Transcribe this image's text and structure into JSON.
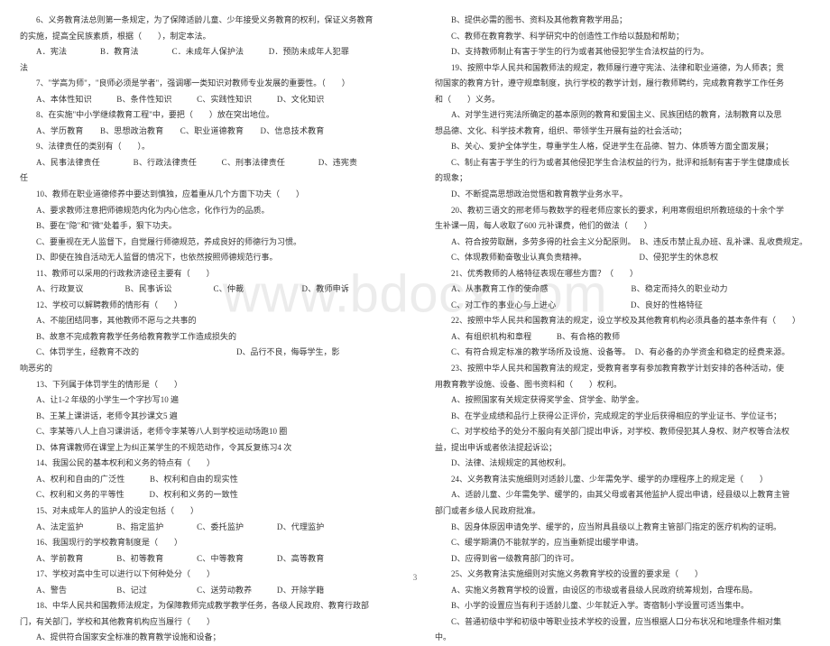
{
  "watermark": "www.bdocx.com",
  "page_number": "3",
  "left_lines": [
    {
      "cls": "indent",
      "t": "6、义务教育法总则第一条规定，为了保障适龄儿童、少年接受义务教育的权利，保证义务教育"
    },
    {
      "cls": "",
      "t": "的实施，提高全民族素质，根据（　　），制定本法。"
    },
    {
      "cls": "opts",
      "t": "A．宪法　　　　B．教育法　　　　C．未成年人保护法　　　D．预防未成年人犯罪"
    },
    {
      "cls": "",
      "t": "法"
    },
    {
      "cls": "indent",
      "t": "7、\"学高为师\"，\"良师必须是学者\"，强调哪一类知识对教师专业发展的重要性。（　　）"
    },
    {
      "cls": "opts",
      "t": "A、本体性知识　　　B、条件性知识　　　C、实践性知识　　　D、文化知识"
    },
    {
      "cls": "indent",
      "t": "8、在实施\"中小学继续教育工程\"中，要把（　　）放在突出地位。"
    },
    {
      "cls": "opts",
      "t": "A、学历教育　　B、思想政治教育　　C、职业道德教育　　D、信息技术教育"
    },
    {
      "cls": "indent",
      "t": "9、法律责任的类别有（　　）。"
    },
    {
      "cls": "opts",
      "t": "A、民事法律责任　　　　B、行政法律责任　　　C、刑事法律责任　　　　D、违宪责"
    },
    {
      "cls": "",
      "t": "任"
    },
    {
      "cls": "indent",
      "t": "10、教师在职业道德修养中要达到慎独，应着重从几个方面下功夫（　　）"
    },
    {
      "cls": "indent",
      "t": "A、要求教师注意把师德规范内化为内心信念，化作行为的品质。"
    },
    {
      "cls": "indent",
      "t": "B、要在\"隐\"和\"微\"处着手，狠下功夫。"
    },
    {
      "cls": "indent",
      "t": "C、要重视在无人监督下，自觉履行师德规范，养成良好的师德行为习惯。"
    },
    {
      "cls": "indent",
      "t": "D、即使在独自活动无人监督的情况下，也依然按照师德规范行事。"
    },
    {
      "cls": "indent",
      "t": "11、教师可以采用的行政救济途径主要有（　　）"
    },
    {
      "cls": "opts",
      "t": "A、行政复议　　　　　B、民事诉讼　　　　　C、仲裁　　　　　　　D、教师申诉"
    },
    {
      "cls": "indent",
      "t": "12、学校可以解聘教师的情形有（　　）"
    },
    {
      "cls": "indent",
      "t": "A、不能团结同事，其他教师不愿与之共事的"
    },
    {
      "cls": "indent",
      "t": "B、故意不完成教育教学任务给教育教学工作造成损失的"
    },
    {
      "cls": "indent",
      "t": "C、体罚学生，经教育不改的　　　　　　　　　　　　D、品行不良，侮辱学生，影"
    },
    {
      "cls": "",
      "t": "响恶劣的"
    },
    {
      "cls": "indent",
      "t": "13、下列属于体罚学生的情形是（　　）"
    },
    {
      "cls": "indent",
      "t": "A、让1-2 年级的小学生一个字抄写10 遍"
    },
    {
      "cls": "indent",
      "t": "B、王某上课讲话，老师令其抄课文5 遍"
    },
    {
      "cls": "indent",
      "t": "C、李某等八人上自习课讲话，老师令李某等八人到学校运动场跑10 圈"
    },
    {
      "cls": "indent",
      "t": "D、体育课教师在课堂上为纠正某学生的不规范动作，令其反复练习4 次"
    },
    {
      "cls": "indent",
      "t": "14、我国公民的基本权利和义务的特点有（　　）"
    },
    {
      "cls": "opts",
      "t": "A、权利和自由的广泛性　　　B、权利和自由的现实性"
    },
    {
      "cls": "opts",
      "t": "C、权利和义务的平等性　　　D、权利和义务的一致性"
    },
    {
      "cls": "indent",
      "t": "15、对未成年人的监护人的设定包括（　　）"
    },
    {
      "cls": "opts",
      "t": "A、法定监护　　　　B、指定监护　　　　C、委托监护　　　　D、代理监护"
    },
    {
      "cls": "indent",
      "t": "16、我国现行的学校教育制度是（　　）"
    },
    {
      "cls": "opts",
      "t": "A、学前教育　　　　B、初等教育　　　　C、中等教育　　　　D、高等教育"
    },
    {
      "cls": "indent",
      "t": "17、学校对高中生可以进行以下何种处分（　　）"
    },
    {
      "cls": "opts",
      "t": "A、警告　　　　　　B、记过　　　　　　C、送劳动教养　　　D、开除学籍"
    },
    {
      "cls": "indent",
      "t": "18、中华人民共和国教师法规定，为保障教师完成教学教学任务，各级人民政府、教育行政部"
    },
    {
      "cls": "",
      "t": "门，有关部门，学校和其他教育机构应当履行（　　）"
    },
    {
      "cls": "indent",
      "t": "A、提供符合国家安全标准的教育教学设施和设备；"
    }
  ],
  "right_lines": [
    {
      "cls": "indent",
      "t": "B、提供必需的图书、资料及其他教育教学用品；"
    },
    {
      "cls": "indent",
      "t": "C、教师在教育教学、科学研究中的创造性工作给以鼓励和帮助；"
    },
    {
      "cls": "indent",
      "t": "D、支持教师制止有害于学生的行为或者其他侵犯学生合法权益的行为。"
    },
    {
      "cls": "indent",
      "t": "19、按照中华人民共和国教师法的规定，教师履行遵守宪法、法律和职业道德，为人师表；贯"
    },
    {
      "cls": "",
      "t": "彻国家的教育方针，遵守规章制度，执行学校的教学计划，履行教师聘约，完成教育教学工作任务"
    },
    {
      "cls": "",
      "t": "和（　　）义务。"
    },
    {
      "cls": "indent",
      "t": "A、对学生进行宪法所确定的基本原则的教育和爱国主义、民族团结的教育，法制教育以及思"
    },
    {
      "cls": "",
      "t": "想品德、文化、科学技术教育，组织、带领学生开展有益的社会活动；"
    },
    {
      "cls": "indent",
      "t": "B、关心、爱护全体学生，尊重学生人格，促进学生在品德、智力、体质等方面全面发展；"
    },
    {
      "cls": "indent",
      "t": "C、制止有害于学生的行为或者其他侵犯学生合法权益的行为，批评和抵制有害于学生健康成长"
    },
    {
      "cls": "",
      "t": "的现象；"
    },
    {
      "cls": "indent",
      "t": "D、不断提高思想政治觉悟和教育教学业务水平。"
    },
    {
      "cls": "indent",
      "t": "20、教初三语文的邢老师与教数学的程老师应家长的要求，利用寒假组织所教班级的十余个学"
    },
    {
      "cls": "",
      "t": "生补课一周，每人收取了600 元补课费，他们的做法（　　）"
    },
    {
      "cls": "indent",
      "t": "A、符合按劳取酬，多劳多得的社会主义分配原则。　B、违反市禁止乱办班、乱补课、乱收费规定。"
    },
    {
      "cls": "indent",
      "t": "C、体现教师勤奋敬业认真负责精神。　　　　　　　D、侵犯学生的休息权"
    },
    {
      "cls": "indent",
      "t": "21、优秀教师的人格特征表现在哪些方面？（　　）"
    },
    {
      "cls": "opts",
      "t": "A、从事教育工作的使命感　　　　　　　　　　B、稳定而持久的职业动力"
    },
    {
      "cls": "opts",
      "t": "C、对工作的事业心与上进心　　　　　　　　　D、良好的性格特征"
    },
    {
      "cls": "indent",
      "t": "22、按照中华人民共和国教育法的规定，设立学校及其他教育机构必须具备的基本条件有（　　）"
    },
    {
      "cls": "opts",
      "t": "A、有组织机构和章程　　　B、有合格的教师"
    },
    {
      "cls": "opts",
      "t": "C、有符合规定标准的教学场所及设施、设备等。　D、有必备的办学资金和稳定的经费来源。"
    },
    {
      "cls": "indent",
      "t": "23、按照中华人民共和国教育法的规定，受教育者享有参加教育教学计划安排的各种活动，使"
    },
    {
      "cls": "",
      "t": "用教育教学设施、设备、图书资料和（　　）权利。"
    },
    {
      "cls": "indent",
      "t": "A、按照国家有关规定获得奖学金、贷学金、助学金。"
    },
    {
      "cls": "indent",
      "t": "B、在学业成绩和品行上获得公正评价，完成规定的学业后获得相应的学业证书、学位证书；"
    },
    {
      "cls": "indent",
      "t": "C、对学校给予的处分不服向有关部门提出申诉，对学校、教师侵犯其人身权、财产权等合法权"
    },
    {
      "cls": "",
      "t": "益，提出申诉或者依法提起诉讼；"
    },
    {
      "cls": "indent",
      "t": "D、法律、法规规定的其他权利。"
    },
    {
      "cls": "indent",
      "t": "24、义务教育法实施细则对适龄儿童、少年需免学、缓学的办理程序上的规定是（　　）"
    },
    {
      "cls": "indent",
      "t": "A、适龄儿童、少年需免学、缓学的，由其父母或者其他监护人提出申请，经县级以上教育主管"
    },
    {
      "cls": "",
      "t": "部门或者乡级人民政府批准。"
    },
    {
      "cls": "indent",
      "t": "B、因身体原因申请免学、缓学的，应当附具县级以上教育主管部门指定的医疗机构的证明。"
    },
    {
      "cls": "indent",
      "t": "C、缓学期满仍不能就学的，应当重新提出缓学申请。"
    },
    {
      "cls": "indent",
      "t": "D、应得到省一级教育部门的许可。"
    },
    {
      "cls": "indent",
      "t": "25、义务教育法实施细则对实施义务教育学校的设置的要求是（　　）"
    },
    {
      "cls": "indent",
      "t": "A、实施义务教育学校的设置，由设区的市级或者县级人民政府统筹规划，合理布局。"
    },
    {
      "cls": "indent",
      "t": "B、小学的设置应当有利于适龄儿童、少年就近入学。寄宿制小学设置可适当集中。"
    },
    {
      "cls": "indent",
      "t": "C、普通初级中学和初级中等职业技术学校的设置，应当根据人口分布状况和地理条件相对集"
    },
    {
      "cls": "",
      "t": "中。"
    }
  ]
}
